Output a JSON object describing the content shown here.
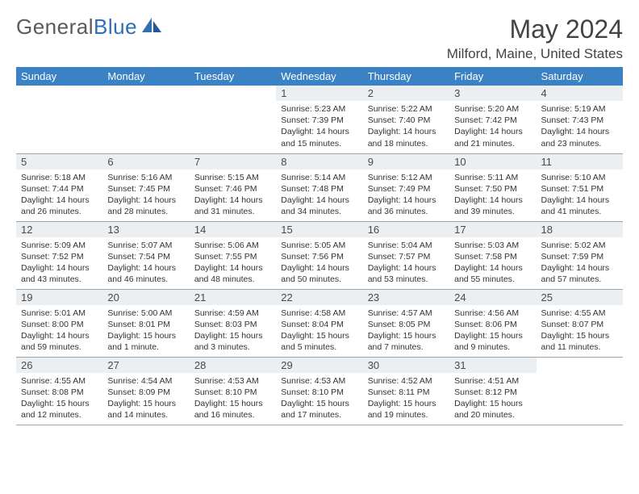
{
  "brand": {
    "name_a": "General",
    "name_b": "Blue"
  },
  "title": "May 2024",
  "location": "Milford, Maine, United States",
  "dow": [
    "Sunday",
    "Monday",
    "Tuesday",
    "Wednesday",
    "Thursday",
    "Friday",
    "Saturday"
  ],
  "colors": {
    "header_bg": "#3a82c4",
    "header_fg": "#ffffff",
    "daynum_bg": "#eceff1",
    "border": "#9aa7b3",
    "logo_gray": "#5a5a5a",
    "logo_blue": "#2f6fb5"
  },
  "weeks": [
    [
      null,
      null,
      null,
      {
        "n": "1",
        "sr": "5:23 AM",
        "ss": "7:39 PM",
        "dl": "14 hours and 15 minutes."
      },
      {
        "n": "2",
        "sr": "5:22 AM",
        "ss": "7:40 PM",
        "dl": "14 hours and 18 minutes."
      },
      {
        "n": "3",
        "sr": "5:20 AM",
        "ss": "7:42 PM",
        "dl": "14 hours and 21 minutes."
      },
      {
        "n": "4",
        "sr": "5:19 AM",
        "ss": "7:43 PM",
        "dl": "14 hours and 23 minutes."
      }
    ],
    [
      {
        "n": "5",
        "sr": "5:18 AM",
        "ss": "7:44 PM",
        "dl": "14 hours and 26 minutes."
      },
      {
        "n": "6",
        "sr": "5:16 AM",
        "ss": "7:45 PM",
        "dl": "14 hours and 28 minutes."
      },
      {
        "n": "7",
        "sr": "5:15 AM",
        "ss": "7:46 PM",
        "dl": "14 hours and 31 minutes."
      },
      {
        "n": "8",
        "sr": "5:14 AM",
        "ss": "7:48 PM",
        "dl": "14 hours and 34 minutes."
      },
      {
        "n": "9",
        "sr": "5:12 AM",
        "ss": "7:49 PM",
        "dl": "14 hours and 36 minutes."
      },
      {
        "n": "10",
        "sr": "5:11 AM",
        "ss": "7:50 PM",
        "dl": "14 hours and 39 minutes."
      },
      {
        "n": "11",
        "sr": "5:10 AM",
        "ss": "7:51 PM",
        "dl": "14 hours and 41 minutes."
      }
    ],
    [
      {
        "n": "12",
        "sr": "5:09 AM",
        "ss": "7:52 PM",
        "dl": "14 hours and 43 minutes."
      },
      {
        "n": "13",
        "sr": "5:07 AM",
        "ss": "7:54 PM",
        "dl": "14 hours and 46 minutes."
      },
      {
        "n": "14",
        "sr": "5:06 AM",
        "ss": "7:55 PM",
        "dl": "14 hours and 48 minutes."
      },
      {
        "n": "15",
        "sr": "5:05 AM",
        "ss": "7:56 PM",
        "dl": "14 hours and 50 minutes."
      },
      {
        "n": "16",
        "sr": "5:04 AM",
        "ss": "7:57 PM",
        "dl": "14 hours and 53 minutes."
      },
      {
        "n": "17",
        "sr": "5:03 AM",
        "ss": "7:58 PM",
        "dl": "14 hours and 55 minutes."
      },
      {
        "n": "18",
        "sr": "5:02 AM",
        "ss": "7:59 PM",
        "dl": "14 hours and 57 minutes."
      }
    ],
    [
      {
        "n": "19",
        "sr": "5:01 AM",
        "ss": "8:00 PM",
        "dl": "14 hours and 59 minutes."
      },
      {
        "n": "20",
        "sr": "5:00 AM",
        "ss": "8:01 PM",
        "dl": "15 hours and 1 minute."
      },
      {
        "n": "21",
        "sr": "4:59 AM",
        "ss": "8:03 PM",
        "dl": "15 hours and 3 minutes."
      },
      {
        "n": "22",
        "sr": "4:58 AM",
        "ss": "8:04 PM",
        "dl": "15 hours and 5 minutes."
      },
      {
        "n": "23",
        "sr": "4:57 AM",
        "ss": "8:05 PM",
        "dl": "15 hours and 7 minutes."
      },
      {
        "n": "24",
        "sr": "4:56 AM",
        "ss": "8:06 PM",
        "dl": "15 hours and 9 minutes."
      },
      {
        "n": "25",
        "sr": "4:55 AM",
        "ss": "8:07 PM",
        "dl": "15 hours and 11 minutes."
      }
    ],
    [
      {
        "n": "26",
        "sr": "4:55 AM",
        "ss": "8:08 PM",
        "dl": "15 hours and 12 minutes."
      },
      {
        "n": "27",
        "sr": "4:54 AM",
        "ss": "8:09 PM",
        "dl": "15 hours and 14 minutes."
      },
      {
        "n": "28",
        "sr": "4:53 AM",
        "ss": "8:10 PM",
        "dl": "15 hours and 16 minutes."
      },
      {
        "n": "29",
        "sr": "4:53 AM",
        "ss": "8:10 PM",
        "dl": "15 hours and 17 minutes."
      },
      {
        "n": "30",
        "sr": "4:52 AM",
        "ss": "8:11 PM",
        "dl": "15 hours and 19 minutes."
      },
      {
        "n": "31",
        "sr": "4:51 AM",
        "ss": "8:12 PM",
        "dl": "15 hours and 20 minutes."
      },
      null
    ]
  ],
  "labels": {
    "sunrise": "Sunrise:",
    "sunset": "Sunset:",
    "daylight": "Daylight:"
  }
}
